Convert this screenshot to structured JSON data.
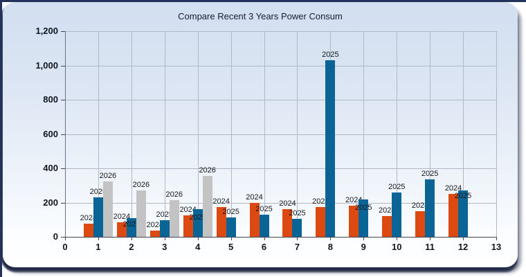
{
  "title": "Compare Recent 3 Years Power Consum",
  "chart_data": {
    "type": "bar",
    "title": "Compare Recent 3 Years Power Consum",
    "categories": [
      1,
      2,
      3,
      4,
      5,
      6,
      7,
      8,
      9,
      10,
      11,
      12
    ],
    "series": [
      {
        "name": "2024",
        "color": "#dc4a12",
        "values": [
          75,
          85,
          35,
          125,
          175,
          200,
          160,
          175,
          180,
          120,
          150,
          250
        ]
      },
      {
        "name": "2025",
        "color": "#0a6495",
        "values": [
          230,
          110,
          95,
          160,
          115,
          130,
          105,
          1030,
          220,
          260,
          335,
          270
        ]
      },
      {
        "name": "2026",
        "color": "#c3c3c3",
        "values": [
          325,
          270,
          215,
          355,
          null,
          null,
          null,
          null,
          null,
          null,
          null,
          null
        ]
      }
    ],
    "xlabel": "",
    "ylabel": "",
    "x_axis": {
      "min": 0,
      "max": 13,
      "tick_step": 1,
      "tick_labels": [
        "0",
        "1",
        "2",
        "3",
        "4",
        "5",
        "6",
        "7",
        "8",
        "9",
        "10",
        "11",
        "12",
        "13"
      ]
    },
    "y_axis": {
      "min": 0,
      "max": 1200,
      "tick_step": 200,
      "tick_labels": [
        "0",
        "200",
        "400",
        "600",
        "800",
        "1,000",
        "1,200"
      ]
    },
    "grid": true,
    "legend": "none",
    "bar_value_labels": "series-name-above-each-bar"
  },
  "colors": {
    "bar_2024": "#dc4a12",
    "bar_2025": "#0a6495",
    "bar_2026": "#c3c3c3",
    "gridline": "#aeb8c6",
    "panel_top": "#d2dff0",
    "panel_bottom": "#ffffff",
    "frame": "#22325a",
    "text": "#10151d"
  }
}
